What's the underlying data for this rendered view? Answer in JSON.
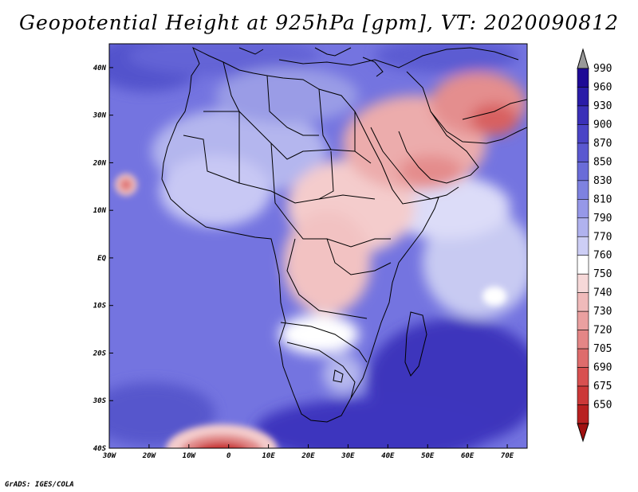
{
  "title": "Geopotential Height at 925hPa [gpm], VT: 2020090812",
  "credit": "GrADS: IGES/COLA",
  "map": {
    "lon_range": [
      -30,
      75
    ],
    "lat_range": [
      -40,
      45
    ],
    "lon_ticks": [
      {
        "value": -30,
        "label": "30W"
      },
      {
        "value": -20,
        "label": "20W"
      },
      {
        "value": -10,
        "label": "10W"
      },
      {
        "value": 0,
        "label": "0"
      },
      {
        "value": 10,
        "label": "10E"
      },
      {
        "value": 20,
        "label": "20E"
      },
      {
        "value": 30,
        "label": "30E"
      },
      {
        "value": 40,
        "label": "40E"
      },
      {
        "value": 50,
        "label": "50E"
      },
      {
        "value": 60,
        "label": "60E"
      },
      {
        "value": 70,
        "label": "70E"
      }
    ],
    "lat_ticks": [
      {
        "value": 40,
        "label": "40N"
      },
      {
        "value": 30,
        "label": "30N"
      },
      {
        "value": 20,
        "label": "20N"
      },
      {
        "value": 10,
        "label": "10N"
      },
      {
        "value": 0,
        "label": "EQ"
      },
      {
        "value": -10,
        "label": "10S"
      },
      {
        "value": -20,
        "label": "20S"
      },
      {
        "value": -30,
        "label": "30S"
      },
      {
        "value": -40,
        "label": "40S"
      }
    ],
    "ocean_color": "#6e6ee0"
  },
  "colorbar": {
    "levels": [
      {
        "label": "990",
        "color": "#1e0a96"
      },
      {
        "label": "960",
        "color": "#2a1ca8"
      },
      {
        "label": "930",
        "color": "#3a30b8"
      },
      {
        "label": "900",
        "color": "#4a44c6"
      },
      {
        "label": "870",
        "color": "#5a58d0"
      },
      {
        "label": "850",
        "color": "#6a6cd8"
      },
      {
        "label": "830",
        "color": "#7e82e0"
      },
      {
        "label": "810",
        "color": "#9698e8"
      },
      {
        "label": "790",
        "color": "#b0b2ee"
      },
      {
        "label": "770",
        "color": "#cdcef5"
      },
      {
        "label": "760",
        "color": "#ffffff"
      },
      {
        "label": "750",
        "color": "#f6d8d8"
      },
      {
        "label": "740",
        "color": "#f0baba"
      },
      {
        "label": "730",
        "color": "#eaa0a0"
      },
      {
        "label": "720",
        "color": "#e48686"
      },
      {
        "label": "705",
        "color": "#de6c6c"
      },
      {
        "label": "690",
        "color": "#d85050"
      },
      {
        "label": "675",
        "color": "#cc3838"
      },
      {
        "label": "650",
        "color": "#b82020"
      }
    ],
    "top_cap_color": "#999999",
    "bottom_cap_color": "#a01010"
  }
}
